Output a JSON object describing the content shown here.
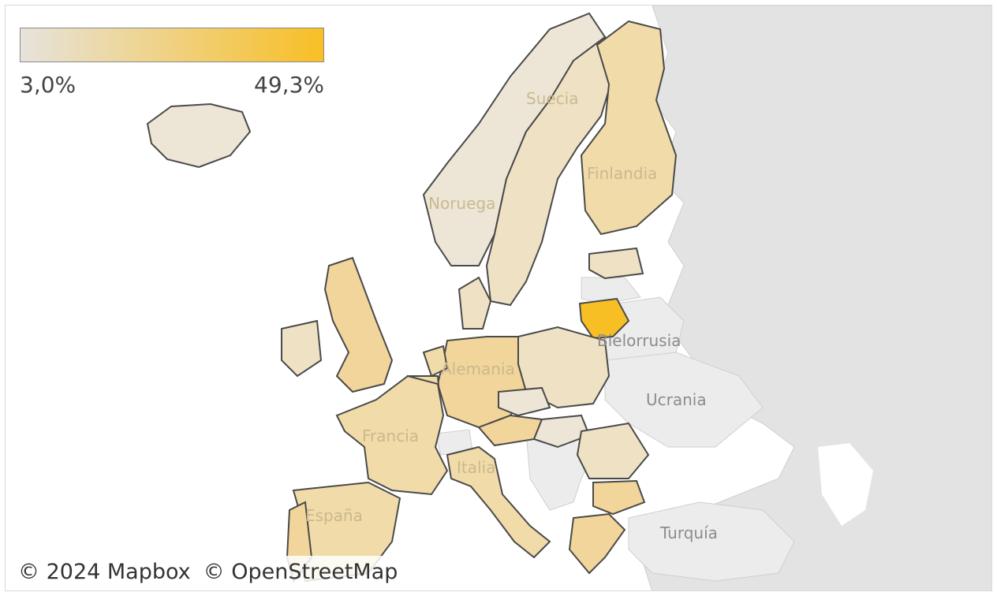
{
  "colors": {
    "sea": "#ffffff",
    "land_other": "#e3e3e3",
    "land_other_light": "#ececec",
    "border_outline": "#4a4a4a",
    "scale_low": "#e7e3dc",
    "scale_high": "#f8bf25",
    "highlight": "#f8bf25"
  },
  "legend": {
    "min_label": "3,0%",
    "max_label": "49,3%"
  },
  "labels": {
    "sweden": "Suecia",
    "finland": "Finlandia",
    "norway": "Noruega",
    "belarus": "Bielorrusia",
    "ukraine": "Ucrania",
    "germany": "Alemania",
    "france": "Francia",
    "italy": "Italia",
    "spain": "España",
    "turkey": "Turquía"
  },
  "attribution": {
    "mapbox": "© 2024 Mapbox",
    "osm": "© OpenStreetMap"
  }
}
